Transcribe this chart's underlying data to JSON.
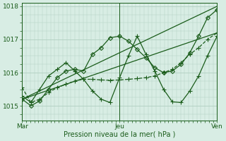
{
  "background_color": "#d8ede4",
  "grid_color": "#b0cfc0",
  "line_color": "#1a5c1a",
  "title": "Pression niveau de la mer( hPa )",
  "xlim": [
    0.0,
    1.0
  ],
  "ylim": [
    1014.55,
    1018.1
  ],
  "yticks": [
    1015,
    1016,
    1017,
    1018
  ],
  "xtick_labels": [
    "Mar",
    "Jeu",
    "Ven"
  ],
  "xtick_pos": [
    0.0,
    0.5,
    1.0
  ],
  "series": [
    {
      "x": [
        0.0,
        0.045,
        0.09,
        0.135,
        0.18,
        0.225,
        0.27,
        0.315,
        0.36,
        0.405,
        0.45,
        0.5,
        0.545,
        0.59,
        0.635,
        0.68,
        0.725,
        0.77,
        0.815,
        0.86,
        0.905,
        0.95,
        1.0
      ],
      "y": [
        1015.55,
        1015.1,
        1015.2,
        1015.4,
        1015.55,
        1015.65,
        1015.75,
        1015.8,
        1015.8,
        1015.78,
        1015.77,
        1015.78,
        1015.8,
        1015.82,
        1015.85,
        1015.9,
        1016.0,
        1016.1,
        1016.3,
        1016.55,
        1016.75,
        1017.0,
        1017.2
      ],
      "style": "--",
      "marker": "+",
      "ms": 4,
      "lw": 0.9
    },
    {
      "x": [
        0.0,
        0.045,
        0.09,
        0.135,
        0.18,
        0.225,
        0.27,
        0.315,
        0.36,
        0.405,
        0.45,
        0.5,
        0.545,
        0.59,
        0.635,
        0.68,
        0.725,
        0.77,
        0.815,
        0.86,
        0.905,
        0.95,
        1.0
      ],
      "y": [
        1015.2,
        1015.0,
        1015.15,
        1015.5,
        1015.85,
        1016.05,
        1016.1,
        1016.05,
        1016.55,
        1016.75,
        1017.05,
        1017.1,
        1016.95,
        1016.7,
        1016.45,
        1016.15,
        1016.0,
        1016.05,
        1016.25,
        1016.6,
        1017.1,
        1017.65,
        1017.9
      ],
      "style": "-",
      "marker": "D",
      "ms": 3,
      "lw": 0.9
    },
    {
      "x": [
        0.0,
        0.045,
        0.09,
        0.135,
        0.18,
        0.225,
        0.27,
        0.315,
        0.36,
        0.405,
        0.45,
        0.5,
        0.545,
        0.59,
        0.635,
        0.68,
        0.725,
        0.77,
        0.815,
        0.86,
        0.905,
        0.95,
        1.0
      ],
      "y": [
        1015.3,
        1015.1,
        1015.5,
        1015.9,
        1016.1,
        1016.3,
        1016.05,
        1015.8,
        1015.45,
        1015.2,
        1015.1,
        1015.85,
        1016.5,
        1017.1,
        1016.55,
        1016.05,
        1015.5,
        1015.12,
        1015.1,
        1015.45,
        1015.9,
        1016.5,
        1017.1
      ],
      "style": "-",
      "marker": "+",
      "ms": 4,
      "lw": 0.9
    },
    {
      "x": [
        0.0,
        1.0
      ],
      "y": [
        1015.2,
        1017.2
      ],
      "style": "-",
      "marker": null,
      "ms": 0,
      "lw": 0.9
    },
    {
      "x": [
        0.0,
        1.0
      ],
      "y": [
        1015.2,
        1018.0
      ],
      "style": "-",
      "marker": null,
      "ms": 0,
      "lw": 0.9
    }
  ]
}
